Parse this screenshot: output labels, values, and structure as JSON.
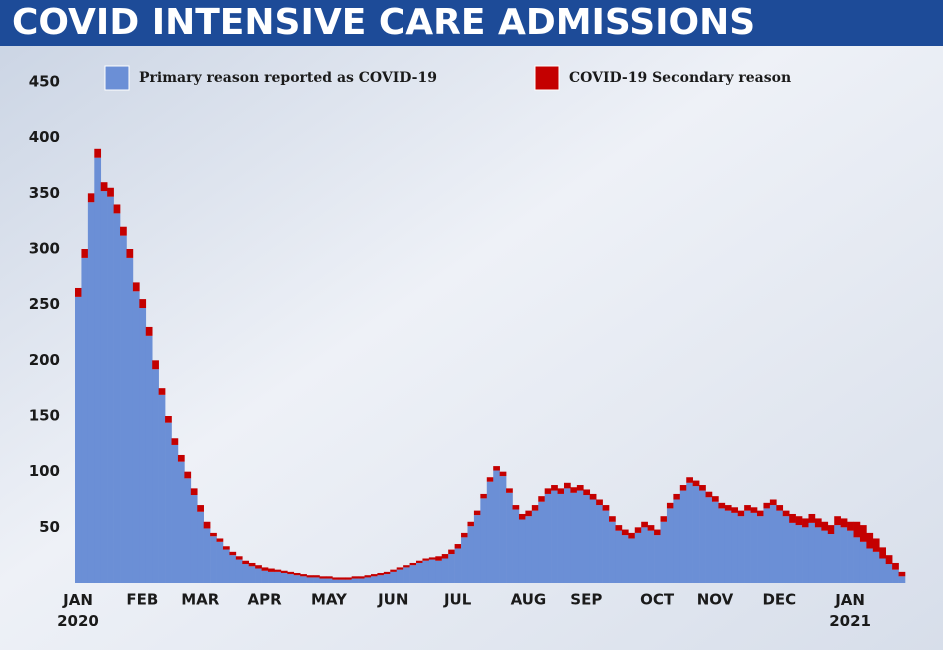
{
  "chart_data": {
    "type": "stacked_bar",
    "title": "COVID INTENSIVE CARE ADMISSIONS",
    "categories": [
      "JAN 2020",
      null,
      null,
      null,
      null,
      null,
      null,
      null,
      null,
      null,
      "FEB",
      null,
      null,
      null,
      null,
      null,
      null,
      null,
      null,
      "MAR",
      null,
      null,
      null,
      null,
      null,
      null,
      null,
      null,
      null,
      "APR",
      null,
      null,
      null,
      null,
      null,
      null,
      null,
      null,
      null,
      "MAY",
      null,
      null,
      null,
      null,
      null,
      null,
      null,
      null,
      null,
      "JUN",
      null,
      null,
      null,
      null,
      null,
      null,
      null,
      null,
      null,
      "JUL",
      null,
      null,
      null,
      null,
      null,
      null,
      null,
      null,
      null,
      null,
      "AUG",
      null,
      null,
      null,
      null,
      null,
      null,
      null,
      null,
      "SEP",
      null,
      null,
      null,
      null,
      null,
      null,
      null,
      null,
      null,
      null,
      "OCT",
      null,
      null,
      null,
      null,
      null,
      null,
      null,
      null,
      "NOV",
      null,
      null,
      null,
      null,
      null,
      null,
      null,
      null,
      null,
      "DEC",
      null,
      null,
      null,
      null,
      null,
      null,
      null,
      null,
      null,
      null,
      "JAN 2021",
      null,
      null,
      null,
      null,
      null,
      null,
      null,
      null
    ],
    "series": [
      {
        "name": "Primary reason reported as COVID-19",
        "color": "#6b8fd6",
        "values": [
          257,
          292,
          342,
          382,
          352,
          347,
          332,
          312,
          292,
          262,
          247,
          222,
          192,
          169,
          144,
          124,
          109,
          94,
          79,
          64,
          49,
          42,
          37,
          30,
          25,
          21,
          17,
          15,
          13,
          11,
          10,
          10,
          9,
          8,
          7,
          6,
          5,
          5,
          4,
          4,
          3,
          3,
          3,
          4,
          4,
          5,
          6,
          7,
          8,
          10,
          12,
          14,
          16,
          18,
          20,
          21,
          20,
          22,
          26,
          31,
          41,
          51,
          61,
          76,
          91,
          101,
          96,
          81,
          66,
          57,
          60,
          65,
          73,
          80,
          83,
          80,
          85,
          81,
          83,
          79,
          75,
          70,
          65,
          55,
          47,
          43,
          40,
          45,
          50,
          47,
          43,
          55,
          67,
          75,
          83,
          90,
          87,
          83,
          77,
          73,
          67,
          65,
          63,
          60,
          65,
          63,
          60,
          67,
          70,
          65,
          60,
          54,
          52,
          50,
          54,
          50,
          47,
          44,
          52,
          50,
          47,
          41,
          37,
          31,
          28,
          22,
          17,
          12,
          6
        ]
      },
      {
        "name": "COVID-19 Secondary reason",
        "color": "#c40000",
        "values": [
          8,
          8,
          8,
          8,
          8,
          8,
          8,
          8,
          8,
          8,
          8,
          8,
          8,
          6,
          6,
          6,
          6,
          6,
          6,
          6,
          6,
          3,
          3,
          3,
          3,
          3,
          3,
          3,
          3,
          3,
          3,
          2,
          2,
          2,
          2,
          2,
          2,
          2,
          2,
          2,
          2,
          2,
          2,
          2,
          2,
          2,
          2,
          2,
          2,
          2,
          2,
          2,
          2,
          2,
          2,
          2,
          4,
          4,
          4,
          4,
          4,
          4,
          4,
          4,
          4,
          4,
          4,
          4,
          4,
          5,
          5,
          5,
          5,
          5,
          5,
          5,
          5,
          5,
          5,
          5,
          5,
          5,
          5,
          5,
          5,
          5,
          5,
          5,
          5,
          5,
          5,
          5,
          5,
          5,
          5,
          5,
          5,
          5,
          5,
          5,
          5,
          5,
          5,
          5,
          5,
          5,
          5,
          5,
          5,
          5,
          5,
          8,
          8,
          8,
          8,
          8,
          8,
          8,
          8,
          8,
          8,
          14,
          15,
          14,
          12,
          10,
          8,
          6,
          4
        ]
      }
    ],
    "ylim": [
      0,
      450
    ],
    "yticks": [
      50,
      100,
      150,
      200,
      250,
      300,
      350,
      400,
      450
    ],
    "grid": false
  }
}
